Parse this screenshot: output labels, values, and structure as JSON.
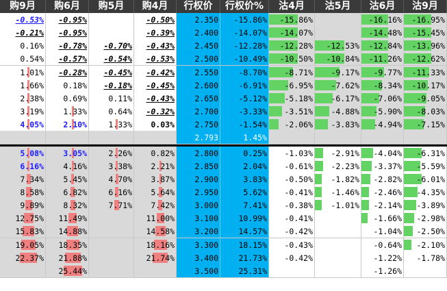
{
  "headers": [
    "购9月",
    "购6月",
    "购5月",
    "购4月",
    "行权价",
    "行权价%",
    "沽4月",
    "沽5月",
    "沽6月",
    "沽9月"
  ],
  "colors": {
    "header_bg": "#3a3a3a",
    "header_text": "#ffffff",
    "strike_bg": "#00b0f0",
    "otm_gray": "#d9d9d9",
    "call_bar": "#f08080",
    "put_bar": "#63d463",
    "emphasis_blue": "#1a1aff",
    "divider": "#000000"
  },
  "rows": [
    [
      {
        "v": "-0.53%",
        "s": "i",
        "c": "blue"
      },
      {
        "v": "-0.95%",
        "s": "i"
      },
      {
        "v": ""
      },
      {
        "v": "-0.50%",
        "s": "i"
      },
      {
        "v": "2.350"
      },
      {
        "v": "-15.86%"
      },
      {
        "v": "-15.86%",
        "pb": 0.18
      },
      {
        "v": ""
      },
      {
        "v": "-16.16%",
        "pb": 0.18
      },
      {
        "v": "-16.95%",
        "pb": 0.18
      }
    ],
    [
      {
        "v": "-0.21%",
        "s": "i"
      },
      {
        "v": "-0.95%",
        "s": "i"
      },
      {
        "v": ""
      },
      {
        "v": "-0.39%",
        "s": "i"
      },
      {
        "v": "2.400"
      },
      {
        "v": "-14.07%"
      },
      {
        "v": "-14.07%",
        "pb": 0.18
      },
      {
        "v": ""
      },
      {
        "v": "-14.48%",
        "pb": 0.18
      },
      {
        "v": "-15.45%",
        "pb": 0.18
      }
    ],
    [
      {
        "v": "0.16%"
      },
      {
        "v": "-0.78%",
        "s": "i"
      },
      {
        "v": "-0.70%",
        "s": "i"
      },
      {
        "v": "-0.43%",
        "s": "i"
      },
      {
        "v": "2.450"
      },
      {
        "v": "-12.28%"
      },
      {
        "v": "-12.28%",
        "pb": 0.18
      },
      {
        "v": "-12.53%",
        "pb": 0.18
      },
      {
        "v": "-12.84%",
        "pb": 0.18
      },
      {
        "v": "-13.96%",
        "pb": 0.18
      }
    ],
    [
      {
        "v": "0.54%"
      },
      {
        "v": "-0.57%",
        "s": "i"
      },
      {
        "v": "-0.54%",
        "s": "i"
      },
      {
        "v": "-0.53%",
        "s": "i"
      },
      {
        "v": "2.500"
      },
      {
        "v": "-10.49%"
      },
      {
        "v": "-10.50%",
        "pb": 0.18
      },
      {
        "v": "-10.84%",
        "pb": 0.18
      },
      {
        "v": "-11.26%",
        "pb": 0.18
      },
      {
        "v": "-12.62%",
        "pb": 0.18
      }
    ],
    [
      {
        "v": "1.01%",
        "cb": 0.04
      },
      {
        "v": "-0.28%",
        "s": "i"
      },
      {
        "v": "-0.45%",
        "s": "i"
      },
      {
        "v": "-0.42%",
        "s": "i"
      },
      {
        "v": "2.550"
      },
      {
        "v": "-8.70%"
      },
      {
        "v": "-8.71%",
        "pb": 0.15
      },
      {
        "v": "-9.17%",
        "pb": 0.15
      },
      {
        "v": "-9.77%",
        "pb": 0.15
      },
      {
        "v": "-11.33%",
        "pb": 0.17
      }
    ],
    [
      {
        "v": "1.66%",
        "cb": 0.04
      },
      {
        "v": "0.18%"
      },
      {
        "v": "-0.18%",
        "s": "i"
      },
      {
        "v": "-0.45%",
        "s": "i"
      },
      {
        "v": "2.600"
      },
      {
        "v": "-6.91%"
      },
      {
        "v": "-6.95%",
        "pb": 0.12
      },
      {
        "v": "-7.62%",
        "pb": 0.13
      },
      {
        "v": "-8.34%",
        "pb": 0.14
      },
      {
        "v": "-10.17%",
        "pb": 0.16
      }
    ],
    [
      {
        "v": "2.38%",
        "cb": 0.04
      },
      {
        "v": "0.69%"
      },
      {
        "v": "0.11%"
      },
      {
        "v": "-0.43%",
        "s": "i"
      },
      {
        "v": "2.650"
      },
      {
        "v": "-5.12%"
      },
      {
        "v": "-5.18%",
        "pb": 0.1
      },
      {
        "v": "-6.17%",
        "pb": 0.11
      },
      {
        "v": "-7.06%",
        "pb": 0.12
      },
      {
        "v": "-9.05%",
        "pb": 0.15
      }
    ],
    [
      {
        "v": "3.19%",
        "cb": 0.04
      },
      {
        "v": "1.33%",
        "cb": 0.04
      },
      {
        "v": "0.64%"
      },
      {
        "v": "-0.32%",
        "s": "i"
      },
      {
        "v": "2.700"
      },
      {
        "v": "-3.33%"
      },
      {
        "v": "-3.51%",
        "pb": 0.08
      },
      {
        "v": "-4.88%",
        "pb": 0.09
      },
      {
        "v": "-5.90%",
        "pb": 0.1
      },
      {
        "v": "-8.03%",
        "pb": 0.14
      }
    ],
    [
      {
        "v": "4.05%",
        "c": "blue",
        "cb": 0.04
      },
      {
        "v": "2.10%",
        "c": "blue",
        "cb": 0.04
      },
      {
        "v": "1.33%",
        "cb": 0.04
      },
      {
        "v": "0.03%",
        "s": "b"
      },
      {
        "v": "2.750"
      },
      {
        "v": "-1.54%"
      },
      {
        "v": "-2.06%",
        "pb": 0.06
      },
      {
        "v": "-3.83%",
        "pb": 0.08
      },
      {
        "v": "-4.94%",
        "pb": 0.09
      },
      {
        "v": "-7.15%",
        "pb": 0.13
      }
    ],
    [
      {
        "v": ""
      },
      {
        "v": ""
      },
      {
        "v": ""
      },
      {
        "v": ""
      },
      {
        "v": "2.793",
        "c": "wt"
      },
      {
        "v": "1.45%",
        "c": "wt"
      },
      {
        "v": ""
      },
      {
        "v": ""
      },
      {
        "v": ""
      },
      {
        "v": ""
      }
    ],
    [
      {
        "v": "5.08%",
        "c": "blue",
        "cb": 0.04
      },
      {
        "v": "3.05%",
        "c": "blue",
        "cb": 0.04
      },
      {
        "v": "2.26%",
        "cb": 0.04
      },
      {
        "v": "0.82%"
      },
      {
        "v": "2.800"
      },
      {
        "v": "0.25%"
      },
      {
        "v": "-1.03%"
      },
      {
        "v": "-2.91%",
        "pb": 0.05
      },
      {
        "v": "-4.04%",
        "pb": 0.08
      },
      {
        "v": "-6.31%",
        "pb": 0.12
      }
    ],
    [
      {
        "v": "6.16%",
        "c": "blue",
        "cb": 0.04
      },
      {
        "v": "4.16%",
        "cb": 0.04
      },
      {
        "v": "3.38%",
        "cb": 0.04
      },
      {
        "v": "2.21%",
        "cb": 0.04
      },
      {
        "v": "2.850"
      },
      {
        "v": "2.04%"
      },
      {
        "v": "-0.61%"
      },
      {
        "v": "-2.23%",
        "pb": 0.05
      },
      {
        "v": "-3.37%",
        "pb": 0.07
      },
      {
        "v": "-5.59%",
        "pb": 0.11
      }
    ],
    [
      {
        "v": "7.34%",
        "cb": 0.07
      },
      {
        "v": "5.45%",
        "cb": 0.05
      },
      {
        "v": "4.70%",
        "cb": 0.05
      },
      {
        "v": "3.87%",
        "cb": 0.04
      },
      {
        "v": "2.900"
      },
      {
        "v": "3.83%"
      },
      {
        "v": "-0.50%"
      },
      {
        "v": "-1.82%",
        "pb": 0.04
      },
      {
        "v": "-2.82%",
        "pb": 0.06
      },
      {
        "v": "-6.01%",
        "pb": 0.12
      }
    ],
    [
      {
        "v": "8.58%",
        "cb": 0.09
      },
      {
        "v": "6.82%",
        "cb": 0.07
      },
      {
        "v": "6.16%",
        "cb": 0.06
      },
      {
        "v": "5.64%",
        "cb": 0.06
      },
      {
        "v": "2.950"
      },
      {
        "v": "5.62%"
      },
      {
        "v": "-0.41%"
      },
      {
        "v": "-1.46%",
        "pb": 0.04
      },
      {
        "v": "-2.46%",
        "pb": 0.05
      },
      {
        "v": "-4.35%",
        "pb": 0.09
      }
    ],
    [
      {
        "v": "9.89%",
        "cb": 0.12
      },
      {
        "v": "8.32%",
        "cb": 0.09
      },
      {
        "v": "7.71%",
        "cb": 0.08
      },
      {
        "v": "7.42%",
        "cb": 0.08
      },
      {
        "v": "3.000"
      },
      {
        "v": "7.41%"
      },
      {
        "v": "-0.38%"
      },
      {
        "v": "-1.01%",
        "pb": 0.04
      },
      {
        "v": "-2.14%",
        "pb": 0.05
      },
      {
        "v": "-3.89%",
        "pb": 0.08
      }
    ],
    [
      {
        "v": "12.75%",
        "cb": 0.16
      },
      {
        "v": "11.49%",
        "cb": 0.15
      },
      {
        "v": ""
      },
      {
        "v": "11.00%",
        "cb": 0.14
      },
      {
        "v": "3.100"
      },
      {
        "v": "10.99%"
      },
      {
        "v": "-0.41%"
      },
      {
        "v": ""
      },
      {
        "v": "-1.66%",
        "pb": 0.04
      },
      {
        "v": "-2.98%",
        "pb": 0.07
      }
    ],
    [
      {
        "v": "15.83%",
        "cb": 0.2
      },
      {
        "v": "14.88%",
        "cb": 0.19
      },
      {
        "v": ""
      },
      {
        "v": "14.58%",
        "cb": 0.18
      },
      {
        "v": "3.200"
      },
      {
        "v": "14.57%"
      },
      {
        "v": "-0.42%"
      },
      {
        "v": ""
      },
      {
        "v": "-1.04%"
      },
      {
        "v": "-2.50%",
        "pb": 0.06
      }
    ],
    [
      {
        "v": "19.05%",
        "cb": 0.24
      },
      {
        "v": "18.35%",
        "cb": 0.23
      },
      {
        "v": ""
      },
      {
        "v": "18.16%",
        "cb": 0.23
      },
      {
        "v": "3.300"
      },
      {
        "v": "18.15%"
      },
      {
        "v": "-0.43%"
      },
      {
        "v": ""
      },
      {
        "v": "-0.64%"
      },
      {
        "v": "-2.10%",
        "pb": 0.05
      }
    ],
    [
      {
        "v": "22.37%",
        "cb": 0.29
      },
      {
        "v": "21.88%",
        "cb": 0.28
      },
      {
        "v": ""
      },
      {
        "v": "21.74%",
        "cb": 0.27
      },
      {
        "v": "3.400"
      },
      {
        "v": "21.73%"
      },
      {
        "v": "-0.42%"
      },
      {
        "v": ""
      },
      {
        "v": "-1.22%"
      },
      {
        "v": "-1.78%"
      }
    ],
    [
      {
        "v": ""
      },
      {
        "v": "25.44%",
        "cb": 0.33
      },
      {
        "v": ""
      },
      {
        "v": ""
      },
      {
        "v": "3.500"
      },
      {
        "v": "25.31%"
      },
      {
        "v": ""
      },
      {
        "v": ""
      },
      {
        "v": "-1.26%"
      },
      {
        "v": ""
      }
    ]
  ]
}
